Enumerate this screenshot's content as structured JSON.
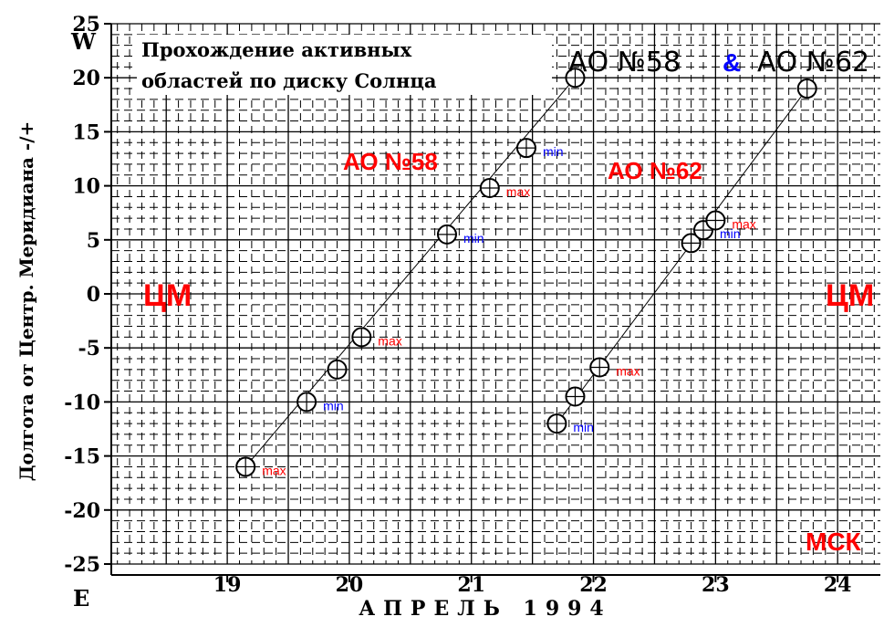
{
  "colors": {
    "red": "#ff0000",
    "blue": "#0000ff",
    "black": "#000000"
  },
  "labels": {
    "ylabel": "Долгота от Центр. Меридиана -/+",
    "xlabel": "АПРЕЛЬ 1994",
    "title_line1": "Прохождение активных",
    "title_line2": "областей по диску Солнца",
    "hdr_left": "АО №58",
    "hdr_amp": "&",
    "hdr_right": "АО №62",
    "ao58": "АО №58",
    "ao62": "АО №62",
    "cm_left": "ЦМ",
    "cm_right": "ЦМ",
    "msk": "МСК",
    "west": "W",
    "east": "E"
  },
  "chart_data": {
    "type": "scatter",
    "xlabel": "АПРЕЛЬ 1994",
    "ylabel": "Долгота от Центр. Меридиана -/+",
    "title": "Прохождение активных областей по диску Солнца",
    "xlim": [
      18.05,
      24.35
    ],
    "ylim": [
      -25,
      25
    ],
    "x_ticks": [
      19,
      20,
      21,
      22,
      23,
      24
    ],
    "y_ticks": [
      25,
      20,
      15,
      10,
      5,
      0,
      -5,
      -10,
      -15,
      -20,
      -25
    ],
    "grid": true,
    "series": [
      {
        "name": "АО №58",
        "points": [
          {
            "x": 19.15,
            "y": -16,
            "label": "max"
          },
          {
            "x": 19.65,
            "y": -10,
            "label": "min"
          },
          {
            "x": 19.9,
            "y": -7,
            "label": ""
          },
          {
            "x": 20.1,
            "y": -4,
            "label": "max"
          },
          {
            "x": 20.8,
            "y": 5.5,
            "label": "min"
          },
          {
            "x": 21.15,
            "y": 9.8,
            "label": "max"
          },
          {
            "x": 21.45,
            "y": 13.5,
            "label": "min"
          },
          {
            "x": 21.85,
            "y": 20,
            "label": ""
          }
        ]
      },
      {
        "name": "АО №62",
        "points": [
          {
            "x": 21.7,
            "y": -12,
            "label": "min"
          },
          {
            "x": 21.85,
            "y": -9.5,
            "label": ""
          },
          {
            "x": 22.05,
            "y": -6.8,
            "label": "max"
          },
          {
            "x": 22.8,
            "y": 4.7,
            "label": ""
          },
          {
            "x": 22.9,
            "y": 5.9,
            "label": "min"
          },
          {
            "x": 23.0,
            "y": 6.8,
            "label": "max"
          },
          {
            "x": 23.75,
            "y": 19,
            "label": ""
          }
        ]
      }
    ]
  }
}
